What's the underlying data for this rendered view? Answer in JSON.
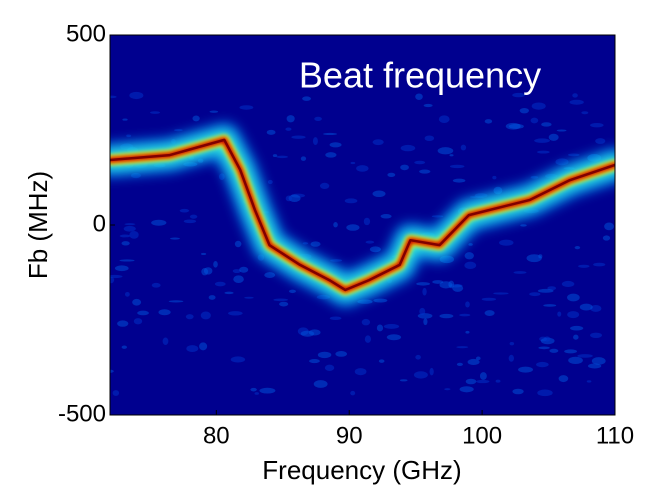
{
  "chart_data": {
    "type": "spectrogram",
    "title": "Beat frequency",
    "x_label": "Frequency (GHz)",
    "y_label": "Fb (MHz)",
    "xlim": [
      72,
      110
    ],
    "ylim": [
      -500,
      500
    ],
    "xticks": [
      80,
      90,
      100,
      110
    ],
    "yticks": [
      -500,
      0,
      500
    ],
    "series": [
      {
        "name": "Beat frequency",
        "color": "#cc0000",
        "x": [
          72,
          76.5,
          80.6,
          81.8,
          82.9,
          84,
          86.3,
          88.5,
          89.7,
          91.5,
          93.8,
          94.6,
          96.8,
          99,
          103.6,
          106.6,
          110
        ],
        "values": [
          171,
          184,
          224,
          145,
          40,
          -53,
          -105,
          -145,
          -171,
          -145,
          -105,
          -40,
          -53,
          26,
          66,
          118,
          158
        ]
      }
    ]
  }
}
